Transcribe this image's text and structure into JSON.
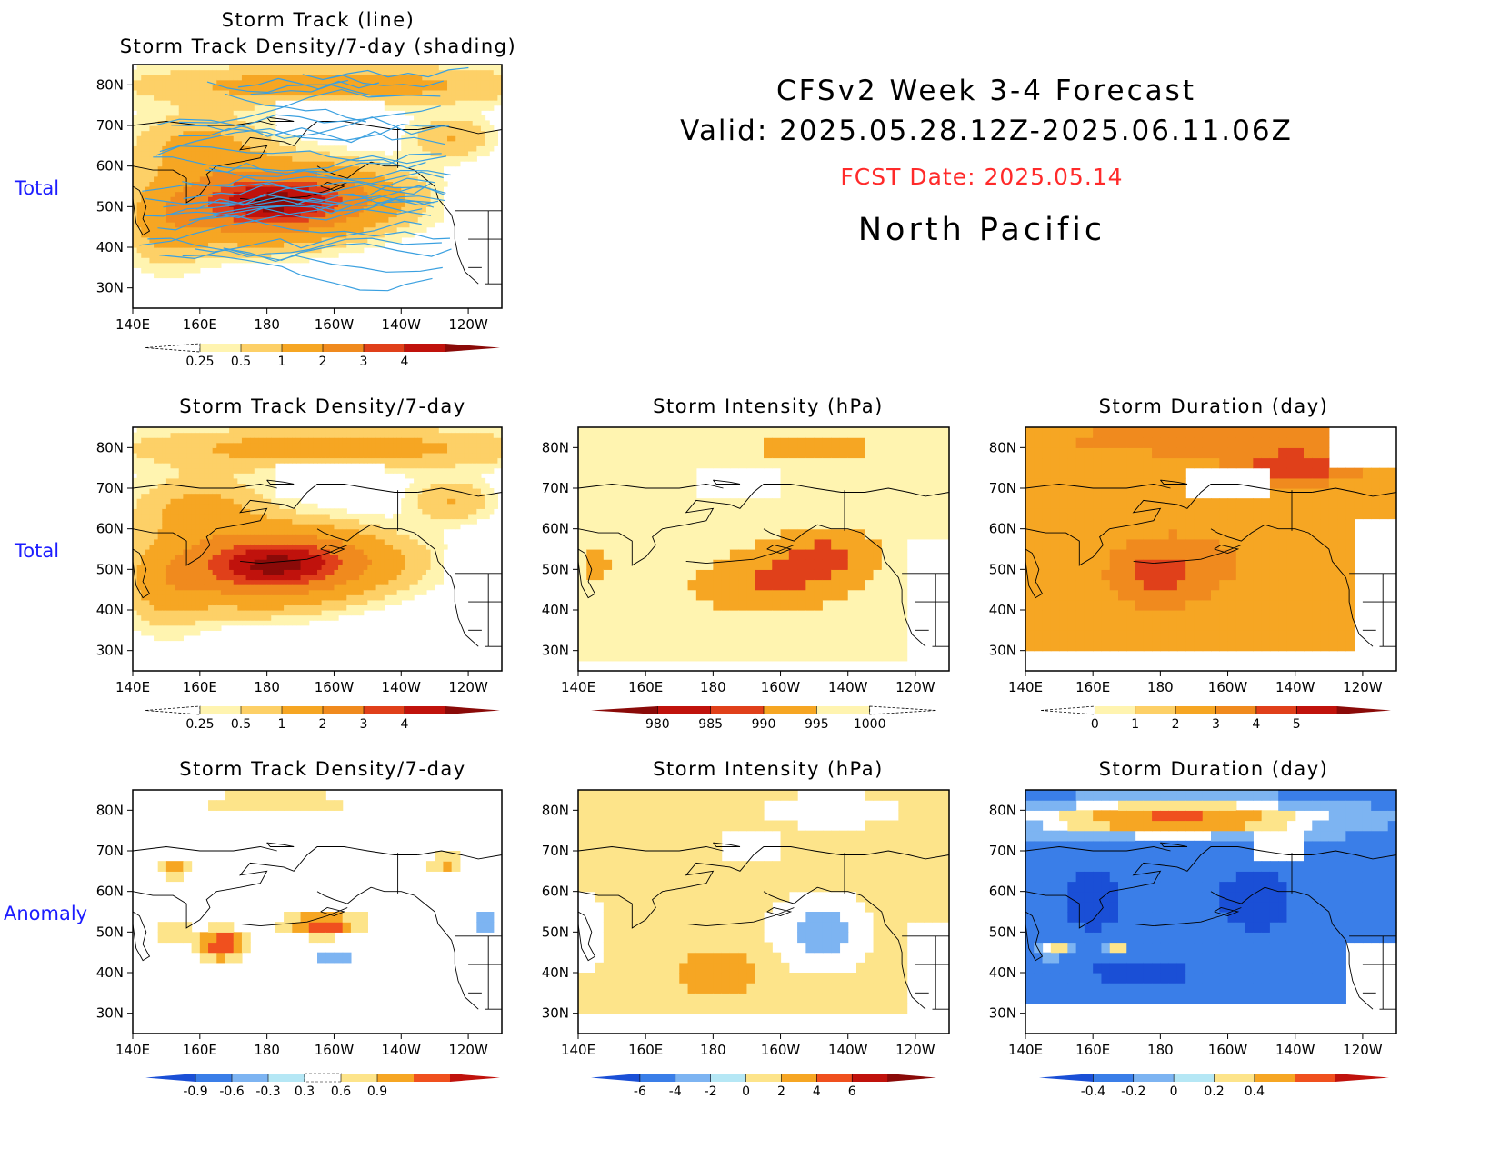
{
  "header": {
    "line1": "CFSv2 Week 3-4 Forecast",
    "line2": "Valid: 2025.05.28.12Z-2025.06.11.06Z",
    "fcst": "FCST Date: 2025.05.14",
    "region": "North Pacific"
  },
  "row_labels": [
    "Total",
    "Total",
    "Anomaly"
  ],
  "axes": {
    "lon_ticks": [
      "140E",
      "160E",
      "180",
      "160W",
      "140W",
      "120W"
    ],
    "lat_ticks": [
      "80N",
      "70N",
      "60N",
      "50N",
      "40N",
      "30N"
    ]
  },
  "panels": [
    {
      "id": "p0",
      "title1": "Storm Track (line)",
      "title2": "Storm Track Density/7-day (shading)",
      "field": "density",
      "tracks": true,
      "cbar": "cb_density"
    },
    {
      "id": "p1",
      "title1": "Storm Track Density/7-day",
      "title2": "",
      "field": "density",
      "tracks": false,
      "cbar": "cb_density"
    },
    {
      "id": "p2",
      "title1": "Storm Intensity (hPa)",
      "title2": "",
      "field": "intensity",
      "tracks": false,
      "cbar": "cb_intensity"
    },
    {
      "id": "p3",
      "title1": "Storm Duration (day)",
      "title2": "",
      "field": "duration",
      "tracks": false,
      "cbar": "cb_duration"
    },
    {
      "id": "p4",
      "title1": "Storm Track Density/7-day",
      "title2": "",
      "field": "density_anom",
      "tracks": false,
      "cbar": "cb_density_anom"
    },
    {
      "id": "p5",
      "title1": "Storm Intensity (hPa)",
      "title2": "",
      "field": "intensity_anom",
      "tracks": false,
      "cbar": "cb_intensity_anom"
    },
    {
      "id": "p6",
      "title1": "Storm Duration (day)",
      "title2": "",
      "field": "duration_anom",
      "tracks": false,
      "cbar": "cb_duration_anom"
    }
  ],
  "colorbars": {
    "cb_density": {
      "labels": [
        "0.25",
        "0.5",
        "1",
        "2",
        "3",
        "4"
      ],
      "colors": [
        "#ffffff",
        "#fff4b0",
        "#fdd067",
        "#f6a623",
        "#f08a1e",
        "#e0401a",
        "#c0120c",
        "#8a0a08"
      ]
    },
    "cb_intensity": {
      "labels": [
        "980",
        "985",
        "990",
        "995",
        "1000"
      ],
      "colors": [
        "#8a0a08",
        "#c0120c",
        "#e0401a",
        "#f6a623",
        "#fff4b0",
        "#ffffff"
      ]
    },
    "cb_duration": {
      "labels": [
        "0",
        "1",
        "2",
        "3",
        "4",
        "5"
      ],
      "colors": [
        "#ffffff",
        "#fff4b0",
        "#fdd067",
        "#f6a623",
        "#f08a1e",
        "#e0401a",
        "#c0120c",
        "#8a0a08"
      ]
    },
    "cb_density_anom": {
      "labels": [
        "-0.9",
        "-0.6",
        "-0.3",
        "0.3",
        "0.6",
        "0.9"
      ],
      "colors": [
        "#1a4fd6",
        "#3a7ee8",
        "#7db4f2",
        "#b5e7f5",
        "#ffffff",
        "#fde48a",
        "#f6a623",
        "#f0501e",
        "#c0120c"
      ]
    },
    "cb_intensity_anom": {
      "labels": [
        "-6",
        "-4",
        "-2",
        "0",
        "2",
        "4",
        "6"
      ],
      "colors": [
        "#1a4fd6",
        "#3a7ee8",
        "#7db4f2",
        "#b5e7f5",
        "#fde48a",
        "#f6a623",
        "#f0501e",
        "#c0120c",
        "#8a0a08"
      ]
    },
    "cb_duration_anom": {
      "labels": [
        "-0.4",
        "-0.2",
        "0",
        "0.2",
        "0.4"
      ],
      "colors": [
        "#1a4fd6",
        "#3a7ee8",
        "#7db4f2",
        "#b5e7f5",
        "#fde48a",
        "#f6a623",
        "#f0501e",
        "#c0120c"
      ]
    }
  },
  "chart_data": {
    "type": "heatmap",
    "region": "North Pacific",
    "lon_range_deg_east": [
      140,
      250
    ],
    "lat_range_deg_north": [
      25,
      85
    ],
    "fields": {
      "density": {
        "units": "storm tracks / 7-day",
        "maxima": [
          {
            "lon": 190,
            "lat": 53,
            "value": 4.0
          }
        ]
      },
      "intensity": {
        "units": "hPa",
        "minima": [
          {
            "lon": 195,
            "lat": 45,
            "value": 987
          },
          {
            "lon": 215,
            "lat": 53,
            "value": 988
          }
        ]
      },
      "duration": {
        "units": "day",
        "maxima": [
          {
            "lon": 220,
            "lat": 74,
            "value": 5.0
          },
          {
            "lon": 175,
            "lat": 48,
            "value": 4.0
          }
        ]
      },
      "density_anom": {
        "maxima": [
          {
            "lon": 168,
            "lat": 47,
            "value": 0.9
          },
          {
            "lon": 197,
            "lat": 52,
            "value": 0.9
          }
        ]
      },
      "intensity_anom": {
        "maxima": [
          {
            "lon": 182,
            "lat": 40,
            "value": 4
          }
        ],
        "minima": [
          {
            "lon": 210,
            "lat": 48,
            "value": -4
          }
        ]
      },
      "duration_anom": {
        "maxima": [
          {
            "lon": 185,
            "lat": 77,
            "value": 0.4
          }
        ],
        "minima": [
          {
            "lon": 160,
            "lat": 57,
            "value": -0.4
          }
        ]
      }
    }
  }
}
